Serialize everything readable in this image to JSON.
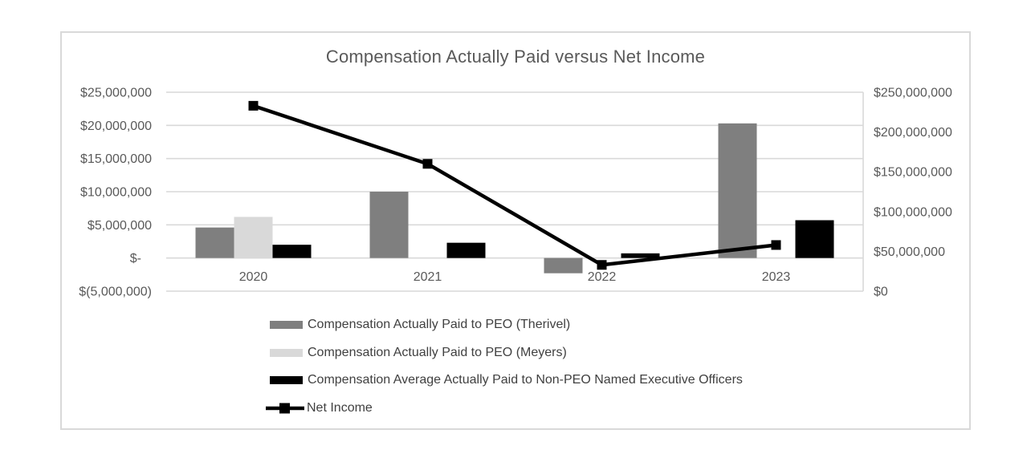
{
  "page": {
    "background_color": "#ffffff",
    "chart_border_color": "#d9d9d9"
  },
  "chart_data": {
    "type": "combo-bar-line",
    "title": "Compensation Actually Paid versus Net Income",
    "categories": [
      "2020",
      "2021",
      "2022",
      "2023"
    ],
    "series": [
      {
        "key": "therivel",
        "name": "Compensation Actually Paid to PEO (Therivel)",
        "type": "bar",
        "axis": "left",
        "color": "#7f7f7f",
        "values": [
          4600000,
          10000000,
          -2300000,
          20300000
        ]
      },
      {
        "key": "meyers",
        "name": "Compensation Actually Paid to PEO (Meyers)",
        "type": "bar",
        "axis": "left",
        "color": "#d9d9d9",
        "values": [
          6200000,
          null,
          null,
          null
        ]
      },
      {
        "key": "non_peo",
        "name": "Compensation Average Actually Paid to Non-PEO Named Executive Officers",
        "type": "bar",
        "axis": "left",
        "color": "#000000",
        "values": [
          2000000,
          2300000,
          700000,
          5700000
        ]
      },
      {
        "key": "net_income",
        "name": "Net Income",
        "type": "line",
        "axis": "right",
        "color": "#000000",
        "marker": "square",
        "values": [
          233000000,
          160000000,
          33000000,
          58000000
        ]
      }
    ],
    "left_axis": {
      "min": -5000000,
      "max": 25000000,
      "ticks": [
        "$25,000,000",
        "$20,000,000",
        "$15,000,000",
        "$10,000,000",
        "$5,000,000",
        "$-",
        "$(5,000,000)"
      ]
    },
    "right_axis": {
      "min": 0,
      "max": 250000000,
      "ticks": [
        "$250,000,000",
        "$200,000,000",
        "$150,000,000",
        "$100,000,000",
        "$50,000,000",
        "$0"
      ]
    },
    "grid": true,
    "gridline_color": "#d9d9d9",
    "axis_text_color": "#595959",
    "legend_position": "bottom-left"
  }
}
